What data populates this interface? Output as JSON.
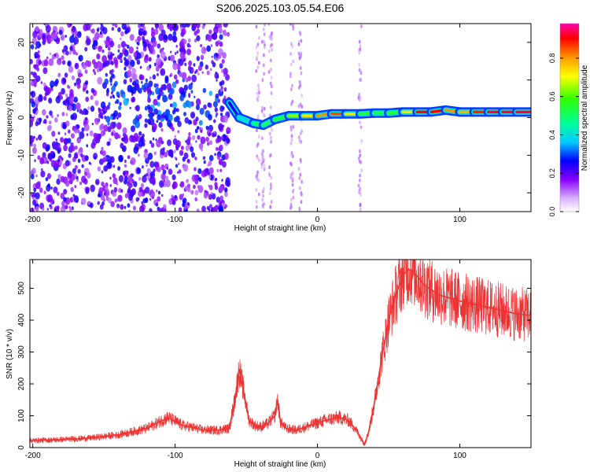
{
  "title": "S206.2025.103.05.54.E06",
  "chart_data": [
    {
      "type": "heatmap",
      "xlabel": "Height of straight line (km)",
      "ylabel": "Frequency (Hz)",
      "xlim": [
        -202,
        150
      ],
      "ylim": [
        -25,
        25
      ],
      "xticks": [
        -200,
        -100,
        0,
        100
      ],
      "yticks": [
        -20,
        -10,
        0,
        10,
        20
      ],
      "colorbar": {
        "label": "Normalized spectral amplitude",
        "ticks": [
          "0.0",
          "0.2",
          "0.4",
          "0.6",
          "0.8"
        ],
        "range": [
          0,
          0.98
        ]
      },
      "ridge": {
        "x": [
          -62,
          -55,
          -45,
          -38,
          -30,
          -20,
          -10,
          0,
          10,
          20,
          30,
          40,
          50,
          60,
          70,
          80,
          90,
          100,
          110,
          120,
          130,
          140,
          150
        ],
        "freq": [
          4,
          0,
          -1.5,
          -2,
          -0.5,
          0.5,
          0.5,
          0.5,
          1,
          1,
          1,
          1.2,
          1.2,
          1.5,
          1.5,
          1.5,
          2,
          1.5,
          1.5,
          1.5,
          1.5,
          1.5,
          1.5
        ],
        "amplitude": [
          0.15,
          0.35,
          0.45,
          0.55,
          0.5,
          0.6,
          0.7,
          0.8,
          0.85,
          0.9,
          0.6,
          0.55,
          0.5,
          0.6,
          0.9,
          0.95,
          0.9,
          0.75,
          0.85,
          0.95,
          0.95,
          0.95,
          0.95
        ]
      }
    },
    {
      "type": "line",
      "xlabel": "Height of straight line (km)",
      "ylabel": "SNR (10 * v/v)",
      "xlim": [
        -202,
        150
      ],
      "ylim": [
        0,
        590
      ],
      "xticks": [
        -200,
        -100,
        0,
        100
      ],
      "yticks": [
        0,
        100,
        200,
        300,
        400,
        500
      ],
      "color": "#ee3333",
      "x": [
        -202,
        -180,
        -160,
        -140,
        -120,
        -105,
        -95,
        -80,
        -70,
        -62,
        -58,
        -55,
        -52,
        -48,
        -44,
        -40,
        -35,
        -30,
        -28,
        -26,
        -22,
        -15,
        -5,
        5,
        15,
        22,
        28,
        33,
        36,
        40,
        45,
        50,
        55,
        60,
        64,
        68,
        75,
        85,
        100,
        120,
        140,
        150
      ],
      "values": [
        22,
        25,
        30,
        40,
        60,
        95,
        70,
        55,
        55,
        60,
        150,
        245,
        180,
        85,
        70,
        65,
        75,
        100,
        150,
        80,
        60,
        55,
        70,
        85,
        95,
        85,
        50,
        10,
        50,
        140,
        280,
        400,
        480,
        540,
        560,
        550,
        510,
        480,
        460,
        440,
        420,
        415
      ]
    }
  ]
}
